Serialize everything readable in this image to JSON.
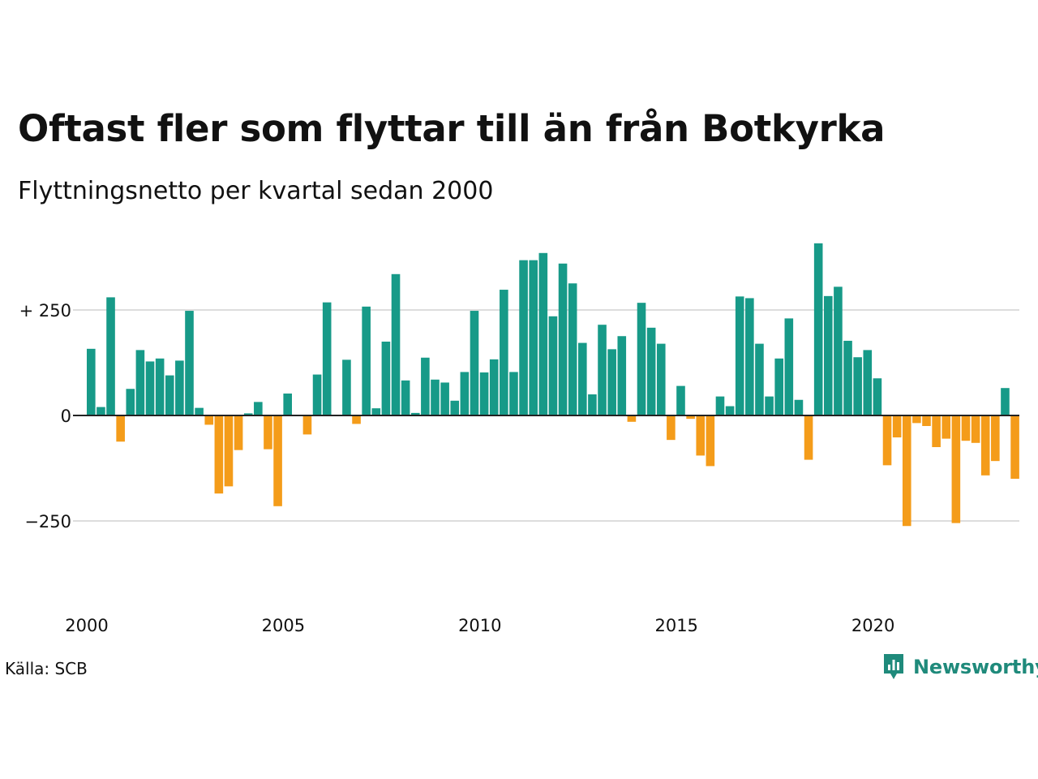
{
  "title": "Oftast fler som flyttar till än från Botkyrka",
  "subtitle": "Flyttningsnetto per kvartal sedan 2000",
  "source": "Källa: SCB",
  "brand": {
    "name": "Newsworthy",
    "icon": "newsworthy-logo-icon",
    "color": "#1f8a7b"
  },
  "colors": {
    "positive": "#179a88",
    "negative": "#f49c1a",
    "grid": "#dddddd",
    "zero": "#222222"
  },
  "chart_data": {
    "type": "bar",
    "title": "Oftast fler som flyttar till än från Botkyrka",
    "subtitle": "Flyttningsnetto per kvartal sedan 2000",
    "xlabel": "",
    "ylabel": "",
    "y_ticks": [
      {
        "value": 250,
        "label": "+ 250"
      },
      {
        "value": 0,
        "label": "0"
      },
      {
        "value": -250,
        "label": "−250"
      }
    ],
    "x_ticks": [
      {
        "value": 2000,
        "label": "2000"
      },
      {
        "value": 2005,
        "label": "2005"
      },
      {
        "value": 2010,
        "label": "2010"
      },
      {
        "value": 2015,
        "label": "2015"
      },
      {
        "value": 2020,
        "label": "2020"
      }
    ],
    "ylim": [
      -420,
      440
    ],
    "grid": true,
    "legend": "none",
    "start_year": 2000,
    "periods_per_year": 4,
    "values": [
      158,
      20,
      280,
      -62,
      63,
      155,
      128,
      135,
      95,
      130,
      248,
      18,
      -22,
      -185,
      -168,
      -82,
      5,
      32,
      -80,
      -215,
      52,
      0,
      -45,
      97,
      268,
      0,
      132,
      -20,
      258,
      17,
      175,
      335,
      83,
      6,
      137,
      85,
      78,
      35,
      103,
      248,
      102,
      133,
      298,
      103,
      368,
      368,
      385,
      235,
      360,
      313,
      172,
      50,
      215,
      157,
      188,
      -15,
      267,
      208,
      170,
      -58,
      70,
      -8,
      -95,
      -120,
      45,
      22,
      282,
      278,
      170,
      45,
      135,
      230,
      37,
      -105,
      408,
      283,
      305,
      177,
      138,
      155,
      88,
      -118,
      -52,
      -262,
      -18,
      -25,
      -75,
      -55,
      -255,
      -60,
      -65,
      -142,
      -108,
      65,
      -150
    ]
  }
}
